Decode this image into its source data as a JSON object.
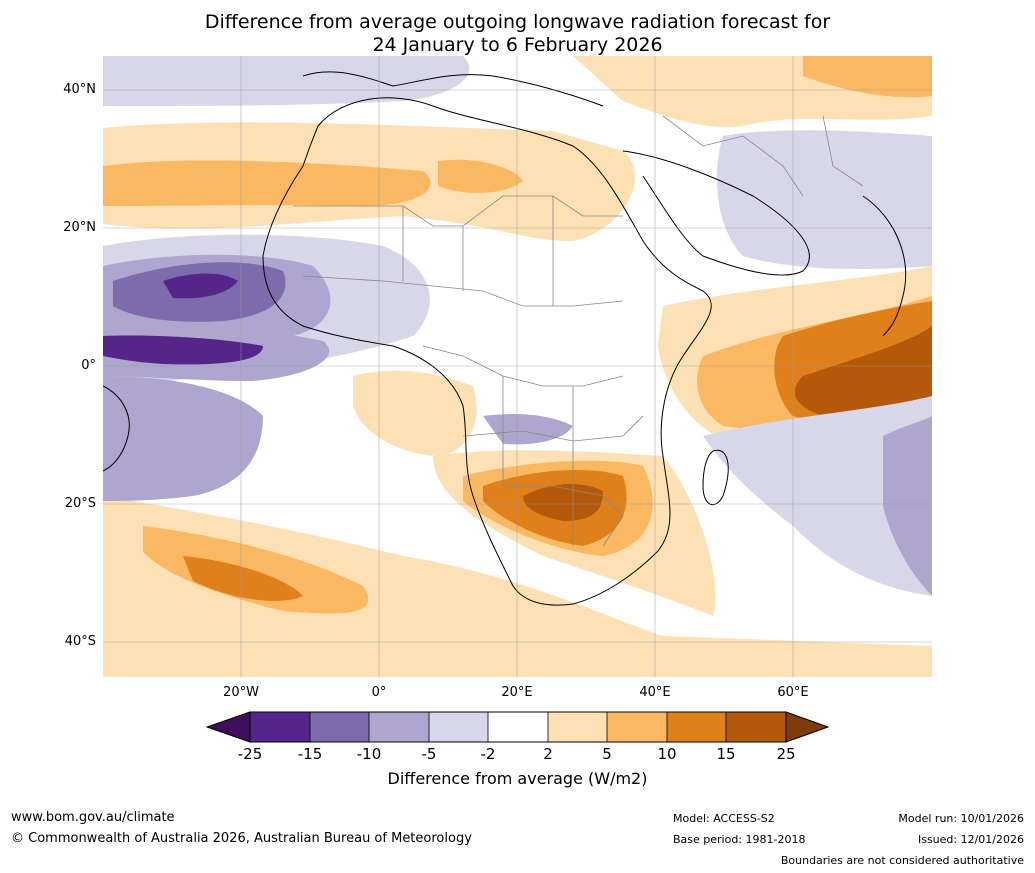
{
  "title": {
    "line1": "Difference from average outgoing longwave radiation forecast for",
    "line2": "24 January to 6 February 2026"
  },
  "axes": {
    "lat_labels": [
      "40°N",
      "20°N",
      "0°",
      "20°S",
      "40°S"
    ],
    "lon_labels": [
      "20°W",
      "0°",
      "20°E",
      "40°E",
      "60°E"
    ]
  },
  "legend": {
    "title": "Difference from average (W/m2)",
    "ticks": [
      "-25",
      "-15",
      "-10",
      "-5",
      "-2",
      "2",
      "5",
      "10",
      "15",
      "25"
    ],
    "colors": [
      "#3f0f5c",
      "#56258a",
      "#7d6bab",
      "#aea6ce",
      "#d8d6e9",
      "#ffffff",
      "#fde0b3",
      "#fbb862",
      "#e0801a",
      "#b4580a",
      "#7f3b08"
    ]
  },
  "footer": {
    "url": "www.bom.gov.au/climate",
    "copyright": "© Commonwealth of Australia 2026, Australian Bureau of Meteorology",
    "model": "Model: ACCESS-S2",
    "base_period": "Base period: 1981-2018",
    "model_run": "Model run: 10/01/2026",
    "issued": "Issued: 12/01/2026",
    "disclaimer": "Boundaries are not considered authoritative"
  }
}
